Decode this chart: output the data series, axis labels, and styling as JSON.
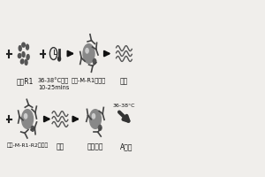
{
  "bg_color": "#f0eeeb",
  "title": "",
  "row1_labels": [
    "抗原R1",
    "36-38°C反应\n10-25mins",
    "样本-M-R1复合物",
    "洗涤"
  ],
  "row2_labels": [
    "样本-M-R1-R2复合物",
    "洗涤",
    "加入底物",
    "A显色"
  ],
  "arrow_color": "#111111",
  "text_color": "#111111",
  "symbol_color": "#444444",
  "bead_color": "#888888",
  "light_gray": "#aaaaaa"
}
